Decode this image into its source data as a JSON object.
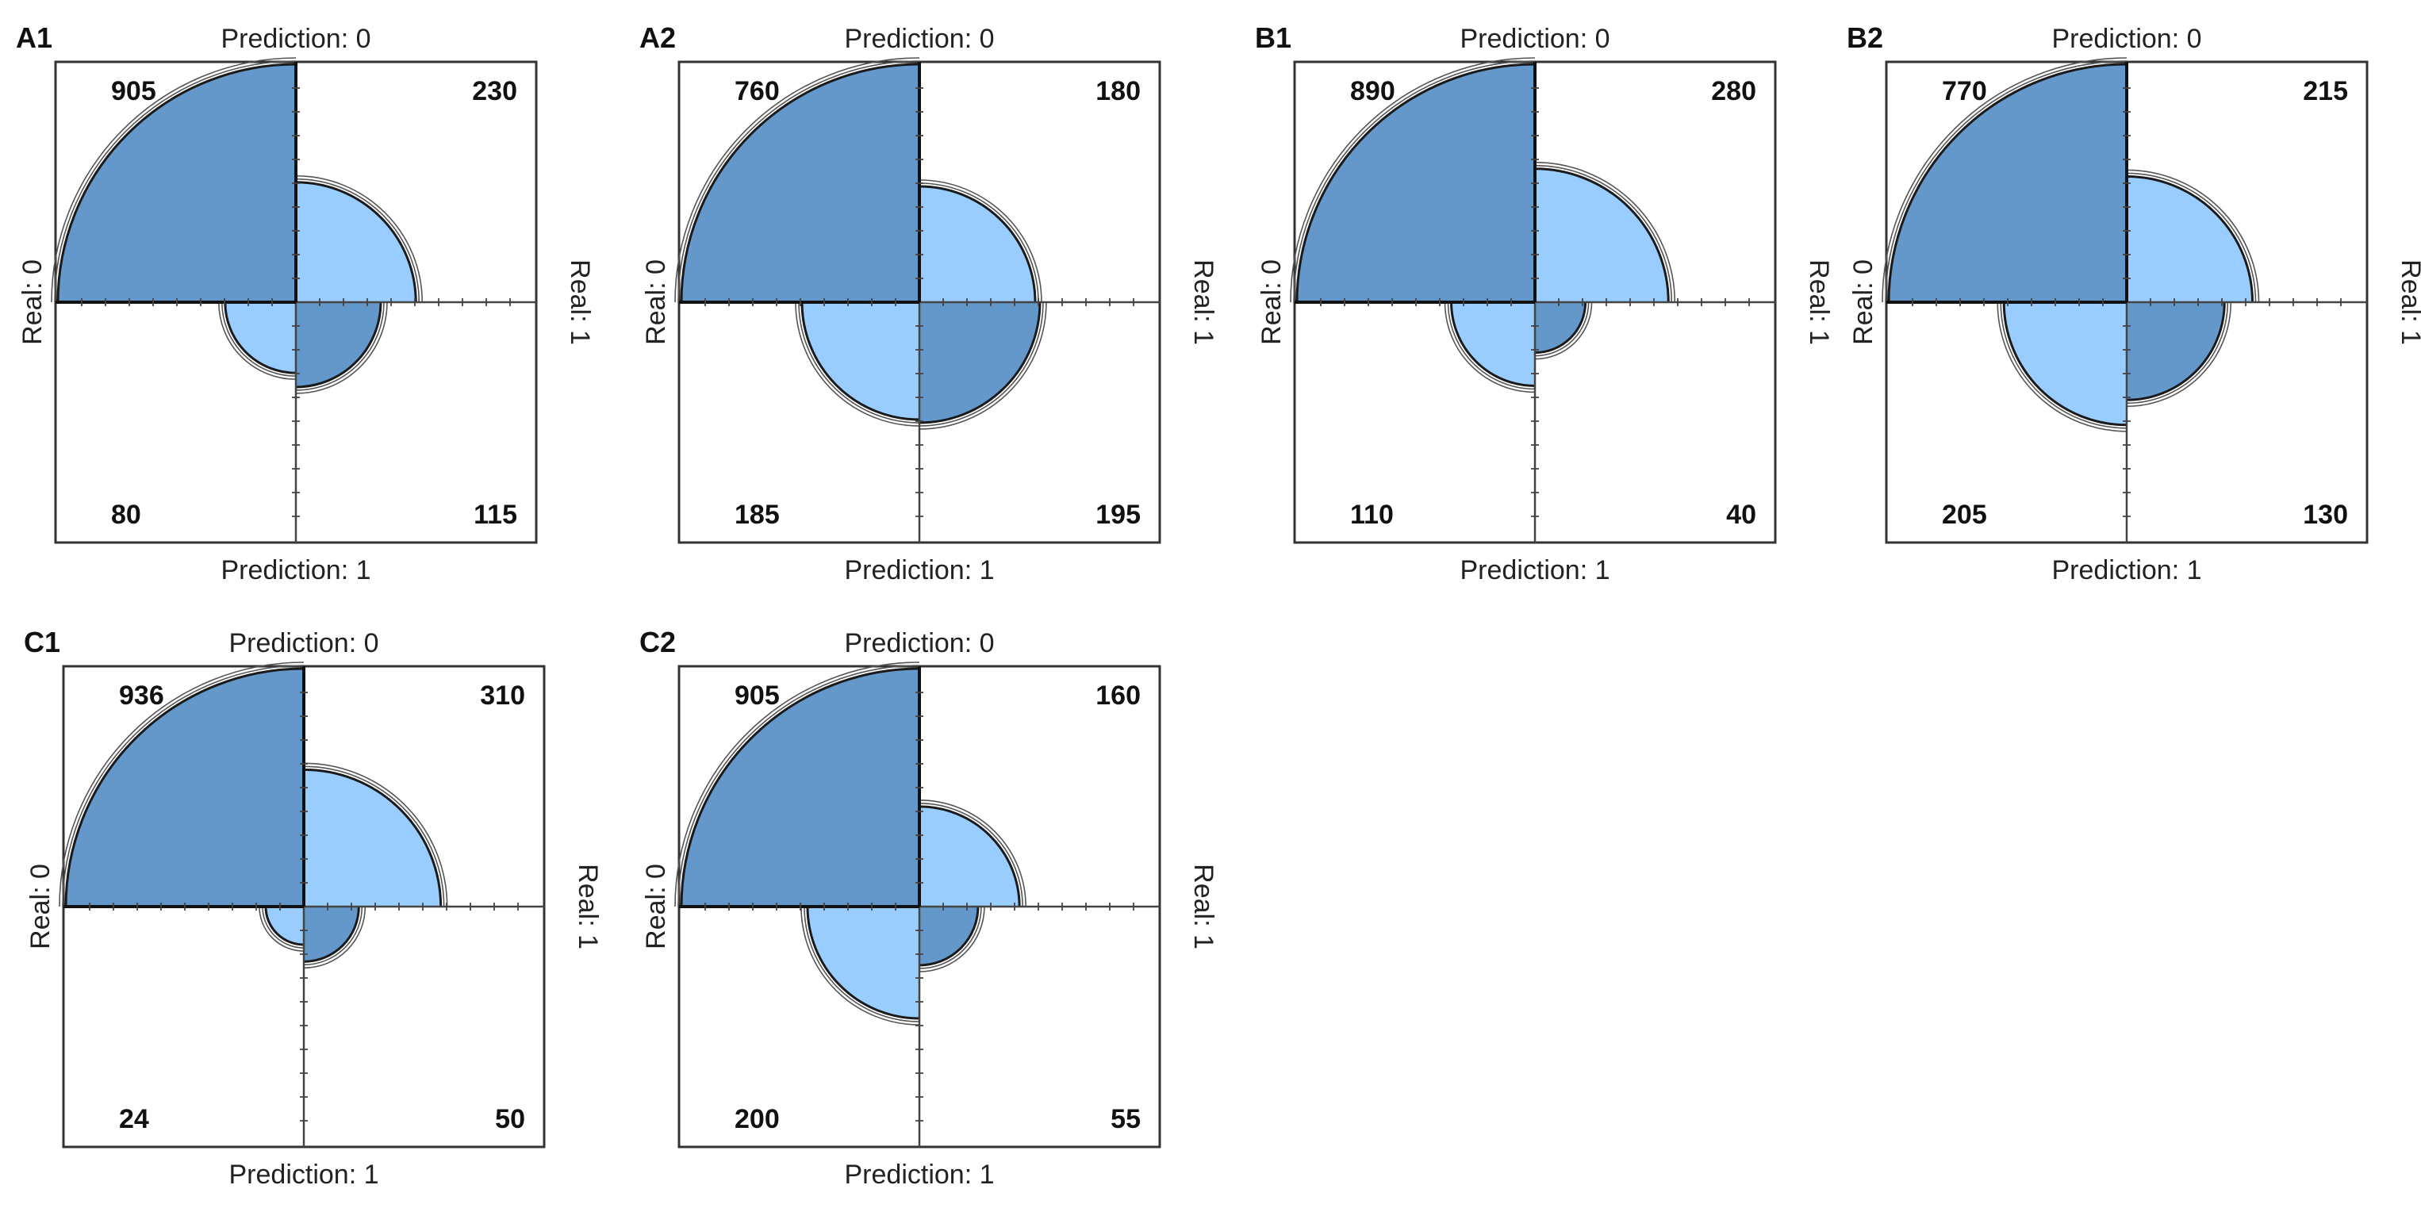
{
  "chart_data": [
    {
      "type": "fourfold",
      "panel_label": "A1",
      "top_label": "Prediction: 0",
      "bottom_label": "Prediction: 1",
      "left_label": "Real: 0",
      "right_label": "Real: 1",
      "cells": [
        {
          "quadrant": "top-left",
          "value": 905,
          "shade": "dark"
        },
        {
          "quadrant": "top-right",
          "value": 230,
          "shade": "light"
        },
        {
          "quadrant": "bottom-left",
          "value": 80,
          "shade": "light"
        },
        {
          "quadrant": "bottom-right",
          "value": 115,
          "shade": "dark"
        }
      ]
    },
    {
      "type": "fourfold",
      "panel_label": "A2",
      "top_label": "Prediction: 0",
      "bottom_label": "Prediction: 1",
      "left_label": "Real: 0",
      "right_label": "Real: 1",
      "cells": [
        {
          "quadrant": "top-left",
          "value": 760,
          "shade": "dark"
        },
        {
          "quadrant": "top-right",
          "value": 180,
          "shade": "light"
        },
        {
          "quadrant": "bottom-left",
          "value": 185,
          "shade": "light"
        },
        {
          "quadrant": "bottom-right",
          "value": 195,
          "shade": "dark"
        }
      ]
    },
    {
      "type": "fourfold",
      "panel_label": "B1",
      "top_label": "Prediction: 0",
      "bottom_label": "Prediction: 1",
      "left_label": "Real: 0",
      "right_label": "Real: 1",
      "cells": [
        {
          "quadrant": "top-left",
          "value": 890,
          "shade": "dark"
        },
        {
          "quadrant": "top-right",
          "value": 280,
          "shade": "light"
        },
        {
          "quadrant": "bottom-left",
          "value": 110,
          "shade": "light"
        },
        {
          "quadrant": "bottom-right",
          "value": 40,
          "shade": "dark"
        }
      ]
    },
    {
      "type": "fourfold",
      "panel_label": "B2",
      "top_label": "Prediction: 0",
      "bottom_label": "Prediction: 1",
      "left_label": "Real: 0",
      "right_label": "Real: 1",
      "cells": [
        {
          "quadrant": "top-left",
          "value": 770,
          "shade": "dark"
        },
        {
          "quadrant": "top-right",
          "value": 215,
          "shade": "light"
        },
        {
          "quadrant": "bottom-left",
          "value": 205,
          "shade": "light"
        },
        {
          "quadrant": "bottom-right",
          "value": 130,
          "shade": "dark"
        }
      ]
    },
    {
      "type": "fourfold",
      "panel_label": "C1",
      "top_label": "Prediction: 0",
      "bottom_label": "Prediction: 1",
      "left_label": "Real: 0",
      "right_label": "Real: 1",
      "cells": [
        {
          "quadrant": "top-left",
          "value": 936,
          "shade": "dark"
        },
        {
          "quadrant": "top-right",
          "value": 310,
          "shade": "light"
        },
        {
          "quadrant": "bottom-left",
          "value": 24,
          "shade": "light"
        },
        {
          "quadrant": "bottom-right",
          "value": 50,
          "shade": "dark"
        }
      ]
    },
    {
      "type": "fourfold",
      "panel_label": "C2",
      "top_label": "Prediction: 0",
      "bottom_label": "Prediction: 1",
      "left_label": "Real: 0",
      "right_label": "Real: 1",
      "cells": [
        {
          "quadrant": "top-left",
          "value": 905,
          "shade": "dark"
        },
        {
          "quadrant": "top-right",
          "value": 160,
          "shade": "light"
        },
        {
          "quadrant": "bottom-left",
          "value": 200,
          "shade": "light"
        },
        {
          "quadrant": "bottom-right",
          "value": 55,
          "shade": "dark"
        }
      ]
    }
  ],
  "colors": {
    "dark_fill": "#6498ca",
    "light_fill": "#99ccff",
    "outline": "#1a1a1a",
    "frame": "#333333",
    "axis": "#444444"
  }
}
